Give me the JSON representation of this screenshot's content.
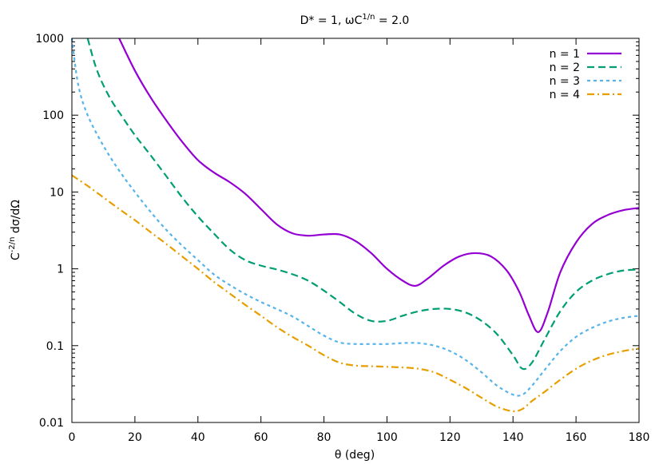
{
  "chart_data": {
    "type": "line",
    "title_parts": [
      "D* = 1, ωC",
      "1/n",
      " = 2.0"
    ],
    "xlabel": "θ (deg)",
    "ylabel_parts": [
      "C",
      "-2/n",
      " dσ/dΩ"
    ],
    "xlim": [
      0,
      180
    ],
    "ylim": [
      0.01,
      1000
    ],
    "yscale": "log",
    "grid": false,
    "legend_position": "top-right",
    "x_ticks": [
      "0",
      "20",
      "40",
      "60",
      "80",
      "100",
      "120",
      "140",
      "160",
      "180"
    ],
    "y_ticks": [
      "0.01",
      "0.1",
      "1",
      "10",
      "100",
      "1000"
    ],
    "series": [
      {
        "name": "n = 1",
        "color": "#9400d3",
        "dash": "solid",
        "x": [
          15,
          20,
          25,
          30,
          35,
          40,
          45,
          50,
          55,
          60,
          65,
          70,
          75,
          80,
          85,
          90,
          95,
          100,
          105,
          109,
          113,
          118,
          123,
          128,
          133,
          138,
          142,
          145,
          148,
          151,
          155,
          160,
          165,
          170,
          175,
          180
        ],
        "y": [
          1000,
          380,
          170,
          85,
          45,
          26,
          18,
          13.5,
          9.5,
          6,
          3.8,
          2.9,
          2.7,
          2.8,
          2.8,
          2.3,
          1.6,
          1.0,
          0.7,
          0.6,
          0.75,
          1.1,
          1.45,
          1.6,
          1.45,
          0.95,
          0.5,
          0.25,
          0.15,
          0.27,
          0.9,
          2.2,
          3.8,
          5.0,
          5.8,
          6.2
        ]
      },
      {
        "name": "n = 2",
        "color": "#009e73",
        "dash": "dashed",
        "x": [
          5,
          8,
          12,
          16,
          20,
          25,
          30,
          35,
          40,
          45,
          50,
          55,
          60,
          65,
          70,
          75,
          80,
          85,
          90,
          95,
          100,
          105,
          110,
          115,
          120,
          125,
          130,
          135,
          140,
          143,
          146,
          150,
          155,
          160,
          165,
          170,
          175,
          180
        ],
        "y": [
          1000,
          380,
          170,
          95,
          55,
          30,
          16,
          8.5,
          4.8,
          2.9,
          1.8,
          1.3,
          1.1,
          0.98,
          0.85,
          0.7,
          0.52,
          0.37,
          0.26,
          0.21,
          0.21,
          0.245,
          0.28,
          0.3,
          0.3,
          0.27,
          0.21,
          0.14,
          0.075,
          0.05,
          0.06,
          0.12,
          0.28,
          0.5,
          0.7,
          0.85,
          0.95,
          0.98
        ]
      },
      {
        "name": "n = 3",
        "color": "#56b4e9",
        "dash": "dotted",
        "x": [
          0,
          2,
          5,
          10,
          15,
          20,
          25,
          30,
          35,
          40,
          45,
          50,
          55,
          60,
          65,
          70,
          75,
          80,
          85,
          90,
          95,
          100,
          105,
          110,
          115,
          120,
          125,
          130,
          135,
          140,
          143,
          146,
          150,
          155,
          160,
          165,
          170,
          175,
          180
        ],
        "y": [
          1000,
          250,
          100,
          40,
          19,
          10,
          5.5,
          3.2,
          2.0,
          1.3,
          0.85,
          0.62,
          0.47,
          0.37,
          0.3,
          0.24,
          0.18,
          0.135,
          0.11,
          0.105,
          0.105,
          0.105,
          0.108,
          0.108,
          0.1,
          0.085,
          0.065,
          0.045,
          0.03,
          0.023,
          0.023,
          0.03,
          0.048,
          0.085,
          0.13,
          0.17,
          0.205,
          0.23,
          0.245
        ]
      },
      {
        "name": "n = 4",
        "color": "#e69f00",
        "dash": "dashdot",
        "x": [
          0,
          5,
          10,
          15,
          20,
          25,
          30,
          35,
          40,
          45,
          50,
          55,
          60,
          65,
          70,
          75,
          80,
          85,
          90,
          95,
          100,
          105,
          110,
          115,
          120,
          125,
          130,
          135,
          140,
          143,
          146,
          150,
          155,
          160,
          165,
          170,
          175,
          180
        ],
        "y": [
          16.5,
          12,
          8.5,
          6,
          4.3,
          3.0,
          2.1,
          1.45,
          1.0,
          0.68,
          0.48,
          0.34,
          0.245,
          0.175,
          0.13,
          0.1,
          0.075,
          0.06,
          0.055,
          0.054,
          0.053,
          0.052,
          0.05,
          0.045,
          0.036,
          0.028,
          0.021,
          0.016,
          0.014,
          0.015,
          0.019,
          0.025,
          0.036,
          0.05,
          0.064,
          0.076,
          0.085,
          0.092
        ]
      }
    ]
  }
}
